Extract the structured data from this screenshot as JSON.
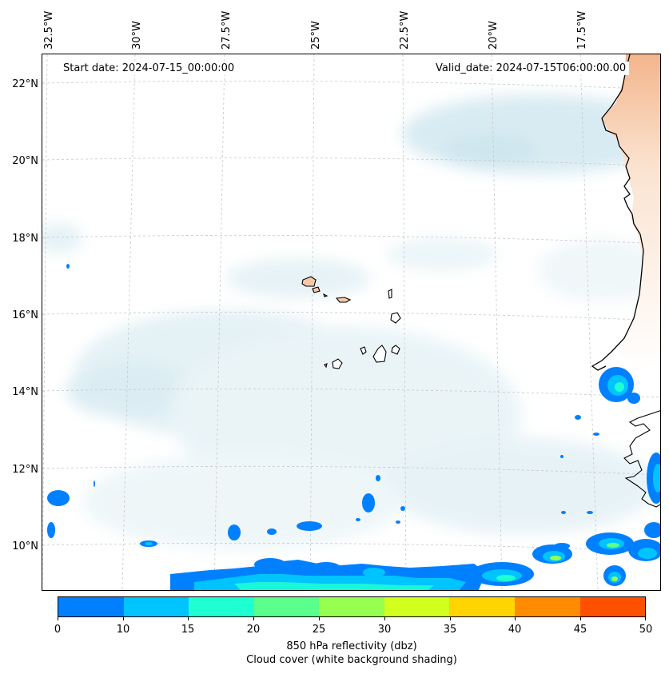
{
  "map": {
    "start_date": "Start date: 2024-07-15_00:00:00",
    "valid_date": "Valid_date: 2024-07-15T06:00:00.00",
    "longitude_labels": [
      "32.5°W",
      "30°W",
      "27.5°W",
      "25°W",
      "22.5°W",
      "20°W",
      "17.5°W"
    ],
    "latitude_labels": [
      "22°N",
      "20°N",
      "18°N",
      "16°N",
      "14°N",
      "12°N",
      "10°N"
    ],
    "land_color": "#f5c9a8",
    "cloud_color": "#cfe6ee",
    "coast_color": "#000000"
  },
  "colorbar": {
    "ticks": [
      "0",
      "10",
      "15",
      "20",
      "25",
      "30",
      "35",
      "40",
      "45",
      "50"
    ],
    "colors": [
      "#0080ff",
      "#00c4ff",
      "#1effd2",
      "#5aff8c",
      "#96ff50",
      "#d2ff1e",
      "#ffd400",
      "#ff8c00",
      "#ff5000"
    ],
    "label_line1": "850 hPa reflectivity (dbz)",
    "label_line2": "Cloud cover (white background shading)"
  }
}
